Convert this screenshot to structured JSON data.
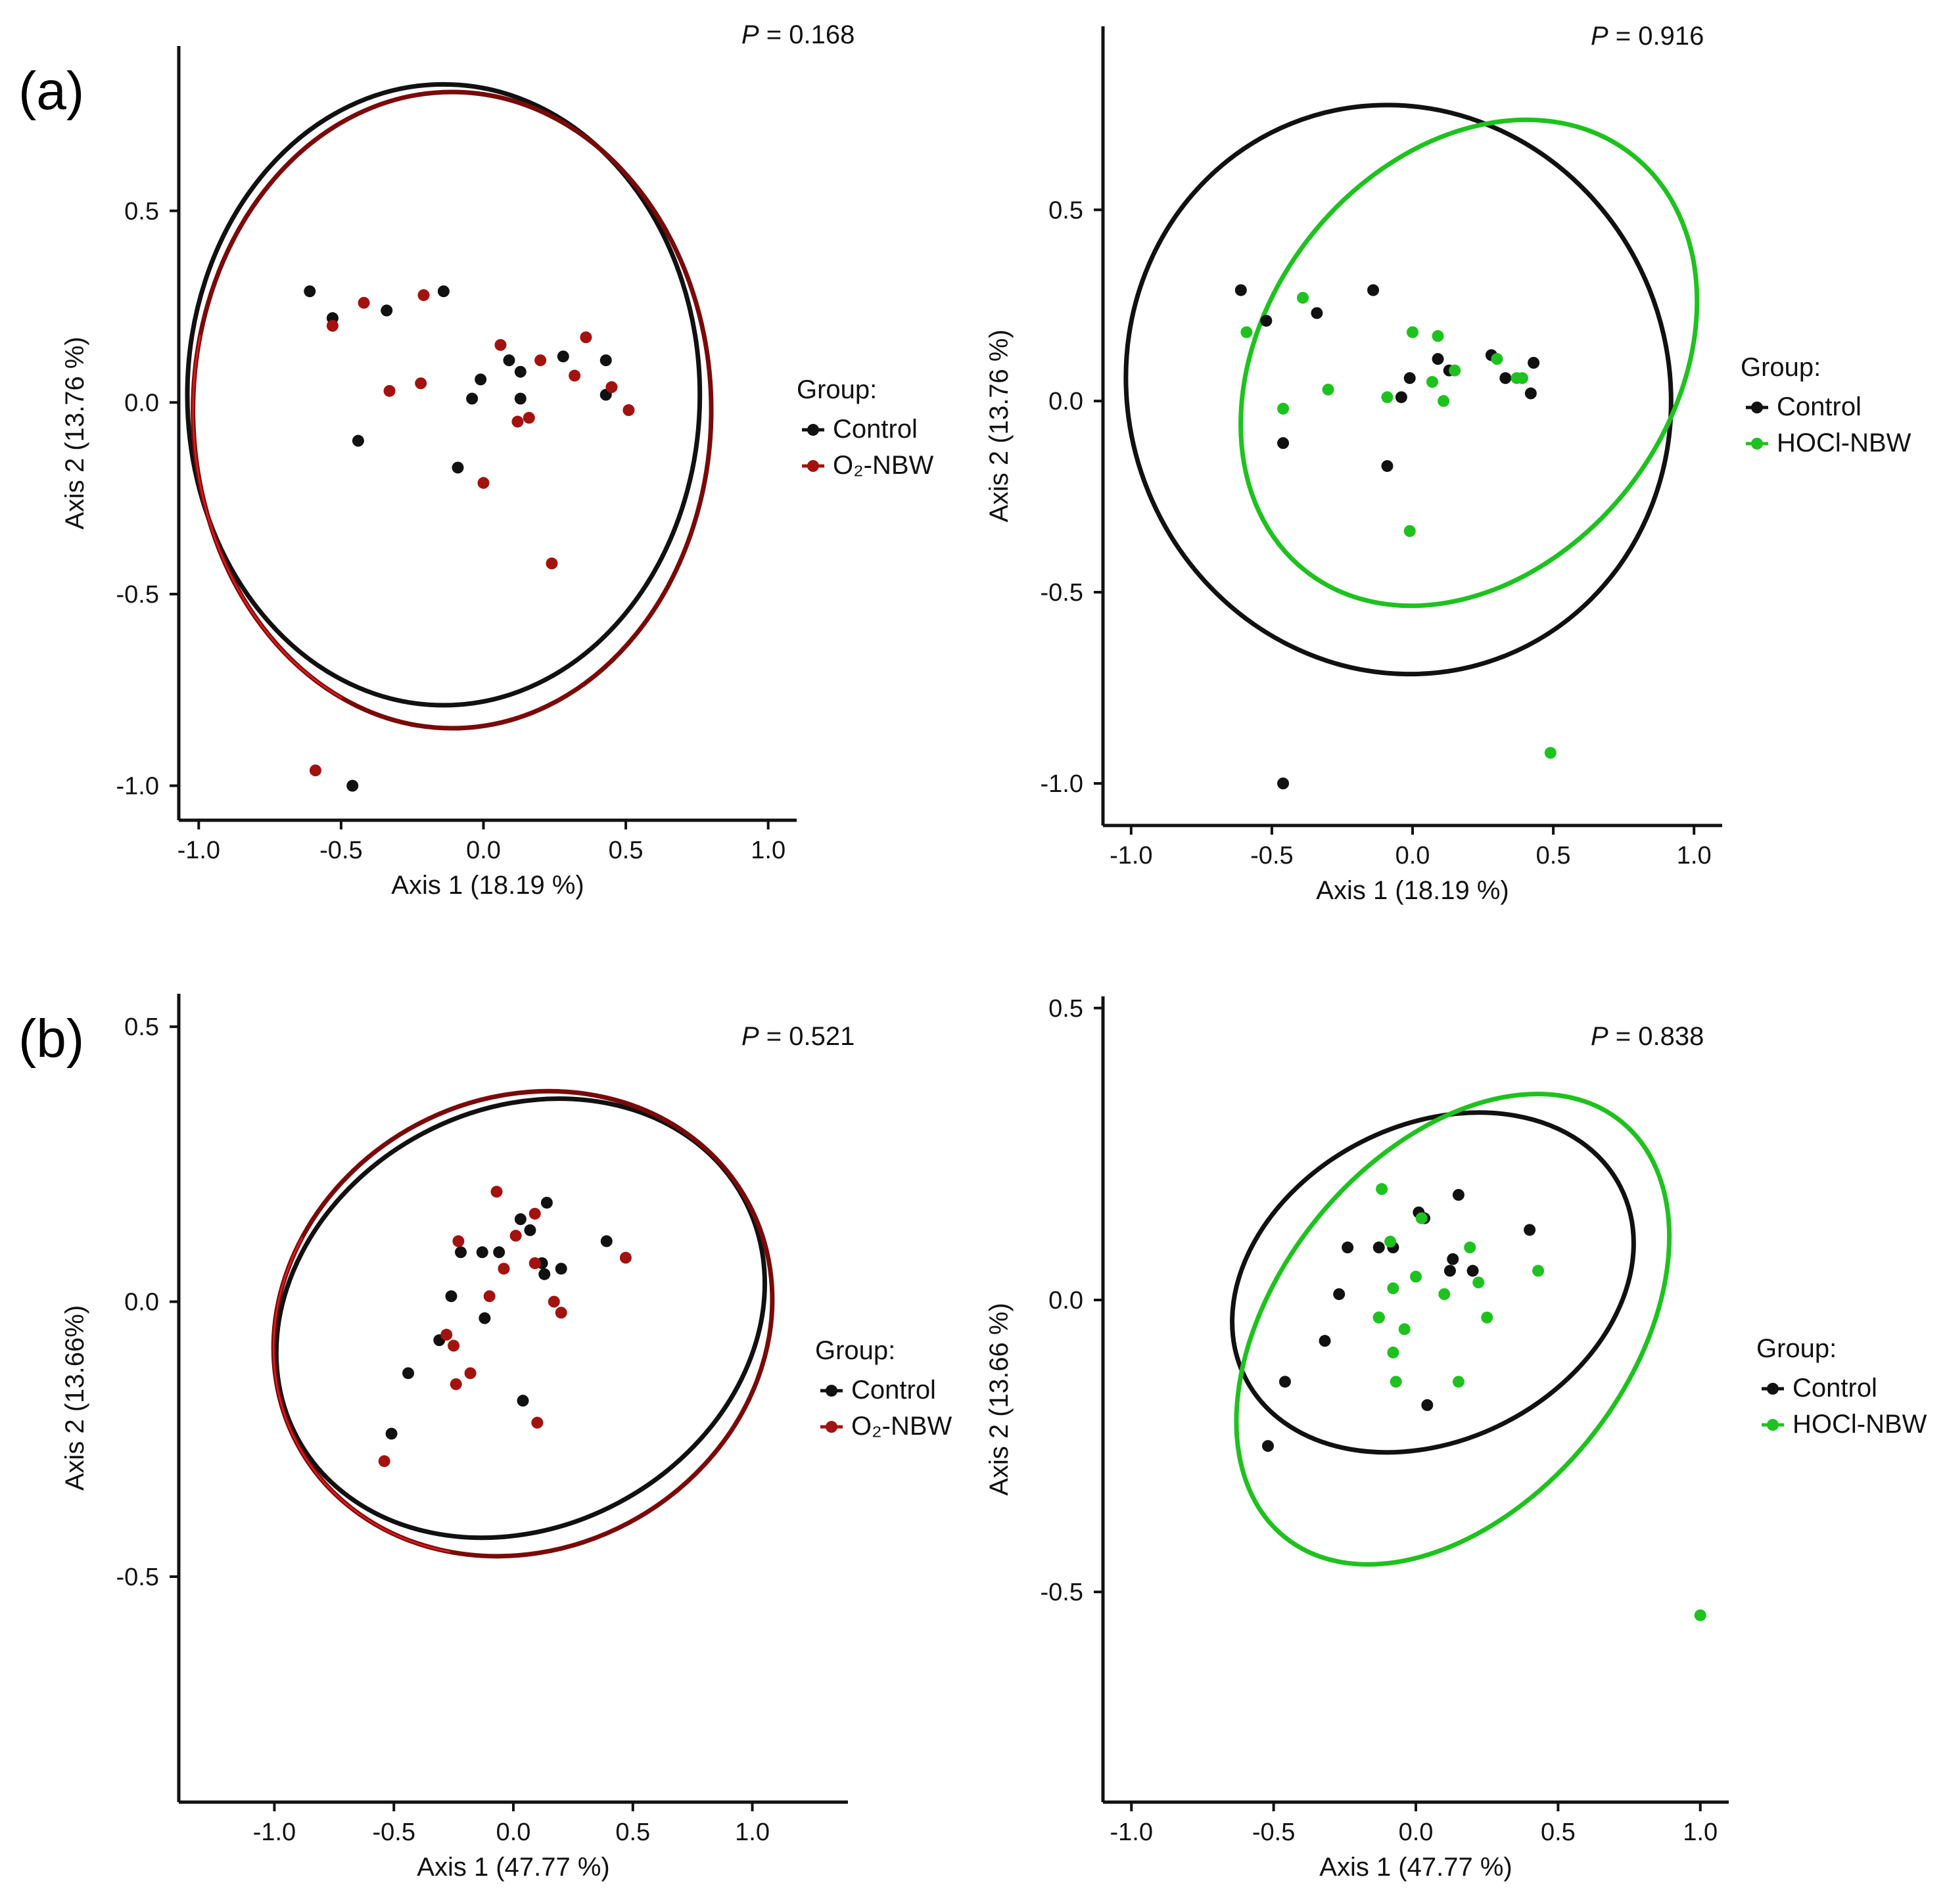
{
  "figure": {
    "panel_labels": [
      "(a)",
      "(b)"
    ],
    "legend_title": "Group:",
    "colors": {
      "control": "#111111",
      "o2_ellipse": "#7a0a0a",
      "o2_ellipse_edge": "#e01b1b",
      "o2_point": "#a3120f",
      "hocl": "#1ec21e",
      "axis": "#111111"
    }
  },
  "chart_data": [
    {
      "id": "a-left",
      "type": "scatter",
      "p_label": "P",
      "p_value": "= 0.168",
      "xlabel": "Axis 1 (18.19 %)",
      "ylabel": "Axis 2 (13.76 %)",
      "xlim": [
        -1.07,
        1.1
      ],
      "ylim": [
        -1.09,
        0.93
      ],
      "xticks": [
        -1.0,
        -0.5,
        0.0,
        0.5,
        1.0
      ],
      "xtick_labels": [
        "-1.0",
        "-0.5",
        "0.0",
        "0.5",
        "1.0"
      ],
      "yticks": [
        -1.0,
        -0.5,
        0.0,
        0.5
      ],
      "ytick_labels": [
        "-1.0",
        "-0.5",
        "0.0",
        "0.5"
      ],
      "series": [
        {
          "name": "Control",
          "color": "#111111",
          "ellipse": {
            "cx": -0.14,
            "cy": 0.02,
            "rx": 0.9,
            "ry": 0.81,
            "angle": 0
          },
          "points": [
            [
              -0.61,
              0.29
            ],
            [
              -0.53,
              0.22
            ],
            [
              -0.34,
              0.24
            ],
            [
              -0.14,
              0.29
            ],
            [
              -0.04,
              0.01
            ],
            [
              -0.01,
              0.06
            ],
            [
              0.09,
              0.11
            ],
            [
              0.13,
              0.08
            ],
            [
              0.28,
              0.12
            ],
            [
              0.43,
              0.11
            ],
            [
              0.43,
              0.02
            ],
            [
              0.13,
              0.01
            ],
            [
              -0.44,
              -0.1
            ],
            [
              -0.09,
              -0.17
            ],
            [
              -0.46,
              -1.0
            ]
          ]
        },
        {
          "name": "O₂-NBW",
          "color": "#a3120f",
          "ellipse": {
            "cx": -0.11,
            "cy": -0.02,
            "rx": 0.91,
            "ry": 0.83,
            "angle": 0
          },
          "points": [
            [
              -0.53,
              0.2
            ],
            [
              -0.42,
              0.26
            ],
            [
              -0.21,
              0.28
            ],
            [
              -0.33,
              0.03
            ],
            [
              -0.22,
              0.05
            ],
            [
              0.06,
              0.15
            ],
            [
              0.2,
              0.11
            ],
            [
              0.36,
              0.17
            ],
            [
              0.32,
              0.07
            ],
            [
              0.45,
              0.04
            ],
            [
              0.51,
              -0.02
            ],
            [
              0.12,
              -0.05
            ],
            [
              0.16,
              -0.04
            ],
            [
              0.0,
              -0.21
            ],
            [
              0.24,
              -0.42
            ],
            [
              -0.59,
              -0.96
            ]
          ]
        }
      ]
    },
    {
      "id": "a-right",
      "type": "scatter",
      "p_label": "P",
      "p_value": "= 0.916",
      "xlabel": "Axis 1 (18.19 %)",
      "ylabel": "Axis 2 (13.76 %)",
      "xlim": [
        -1.1,
        1.1
      ],
      "ylim": [
        -1.11,
        0.98
      ],
      "xticks": [
        -1.0,
        -0.5,
        0.0,
        0.5,
        1.0
      ],
      "xtick_labels": [
        "-1.0",
        "-0.5",
        "0.0",
        "0.5",
        "1.0"
      ],
      "yticks": [
        -1.0,
        -0.5,
        0.0,
        0.5
      ],
      "ytick_labels": [
        "-1.0",
        "-0.5",
        "0.0",
        "0.5"
      ],
      "series": [
        {
          "name": "Control",
          "color": "#111111",
          "ellipse": {
            "cx": -0.05,
            "cy": 0.03,
            "rx": 0.96,
            "ry": 0.75,
            "angle": -22
          },
          "points": [
            [
              -0.61,
              0.29
            ],
            [
              -0.52,
              0.21
            ],
            [
              -0.34,
              0.23
            ],
            [
              -0.14,
              0.29
            ],
            [
              -0.04,
              0.01
            ],
            [
              -0.01,
              0.06
            ],
            [
              0.09,
              0.11
            ],
            [
              0.13,
              0.08
            ],
            [
              0.28,
              0.12
            ],
            [
              0.43,
              0.1
            ],
            [
              0.42,
              0.02
            ],
            [
              0.33,
              0.06
            ],
            [
              -0.46,
              -0.11
            ],
            [
              -0.09,
              -0.17
            ],
            [
              -0.46,
              -1.0
            ]
          ]
        },
        {
          "name": "HOCl-NBW",
          "color": "#1ec21e",
          "ellipse": {
            "cx": 0.2,
            "cy": 0.1,
            "rx": 0.94,
            "ry": 0.53,
            "angle": -52
          },
          "points": [
            [
              -0.59,
              0.18
            ],
            [
              -0.39,
              0.27
            ],
            [
              -0.46,
              -0.02
            ],
            [
              -0.3,
              0.03
            ],
            [
              -0.09,
              0.01
            ],
            [
              0.0,
              0.18
            ],
            [
              0.09,
              0.17
            ],
            [
              0.07,
              0.05
            ],
            [
              0.15,
              0.08
            ],
            [
              0.11,
              0.0
            ],
            [
              0.3,
              0.11
            ],
            [
              0.37,
              0.06
            ],
            [
              0.39,
              0.06
            ],
            [
              -0.01,
              -0.34
            ],
            [
              0.49,
              -0.92
            ]
          ]
        }
      ]
    },
    {
      "id": "b-left",
      "type": "scatter",
      "p_label": "P",
      "p_value": "= 0.521",
      "xlabel": "Axis 1 (47.77 %)",
      "ylabel": "Axis 2 (13.66%)",
      "xlim": [
        -1.4,
        1.4
      ],
      "ylim": [
        -0.91,
        0.56
      ],
      "xticks": [
        -1.0,
        -0.5,
        0.0,
        0.5,
        1.0
      ],
      "xtick_labels": [
        "-1.0",
        "-0.5",
        "0.0",
        "0.5",
        "1.0"
      ],
      "yticks": [
        -0.5,
        0.0,
        0.5
      ],
      "ytick_labels": [
        "-0.5",
        "0.0",
        "0.5"
      ],
      "series": [
        {
          "name": "Control",
          "color": "#111111",
          "ellipse": {
            "cx": 0.03,
            "cy": -0.03,
            "rx": 1.06,
            "ry": 0.38,
            "angle": -28
          },
          "points": [
            [
              -0.26,
              0.01
            ],
            [
              -0.22,
              0.09
            ],
            [
              -0.13,
              0.09
            ],
            [
              -0.06,
              0.09
            ],
            [
              0.03,
              0.15
            ],
            [
              0.07,
              0.13
            ],
            [
              0.14,
              0.18
            ],
            [
              0.12,
              0.07
            ],
            [
              0.13,
              0.05
            ],
            [
              0.2,
              0.06
            ],
            [
              0.39,
              0.11
            ],
            [
              -0.31,
              -0.07
            ],
            [
              -0.12,
              -0.03
            ],
            [
              -0.44,
              -0.13
            ],
            [
              0.04,
              -0.18
            ],
            [
              -0.51,
              -0.24
            ]
          ]
        },
        {
          "name": "O₂-NBW",
          "color": "#a3120f",
          "ellipse": {
            "cx": 0.04,
            "cy": -0.04,
            "rx": 1.07,
            "ry": 0.41,
            "angle": -28
          },
          "points": [
            [
              -0.23,
              0.11
            ],
            [
              -0.07,
              0.2
            ],
            [
              0.01,
              0.12
            ],
            [
              0.09,
              0.16
            ],
            [
              -0.04,
              0.06
            ],
            [
              0.09,
              0.07
            ],
            [
              -0.1,
              0.01
            ],
            [
              0.17,
              0.0
            ],
            [
              0.2,
              -0.02
            ],
            [
              -0.28,
              -0.06
            ],
            [
              -0.25,
              -0.08
            ],
            [
              -0.18,
              -0.13
            ],
            [
              -0.24,
              -0.15
            ],
            [
              0.1,
              -0.22
            ],
            [
              0.47,
              0.08
            ],
            [
              -0.54,
              -0.29
            ]
          ]
        }
      ]
    },
    {
      "id": "b-right",
      "type": "scatter",
      "p_label": "P",
      "p_value": "= 0.838",
      "xlabel": "Axis 1 (47.77 %)",
      "ylabel": "Axis 2 (13.66 %)",
      "xlim": [
        -1.1,
        1.1
      ],
      "ylim": [
        -0.86,
        0.52
      ],
      "xticks": [
        -1.0,
        -0.5,
        0.0,
        0.5,
        1.0
      ],
      "xtick_labels": [
        "-1.0",
        "-0.5",
        "0.0",
        "0.5",
        "1.0"
      ],
      "yticks": [
        -0.5,
        0.0,
        0.5
      ],
      "ytick_labels": [
        "-0.5",
        "0.0",
        "0.5"
      ],
      "series": [
        {
          "name": "Control",
          "color": "#111111",
          "ellipse": {
            "cx": 0.06,
            "cy": 0.03,
            "rx": 0.74,
            "ry": 0.27,
            "angle": -27
          },
          "points": [
            [
              -0.24,
              0.09
            ],
            [
              -0.13,
              0.09
            ],
            [
              -0.08,
              0.09
            ],
            [
              0.01,
              0.15
            ],
            [
              0.03,
              0.14
            ],
            [
              0.15,
              0.18
            ],
            [
              0.13,
              0.07
            ],
            [
              0.12,
              0.05
            ],
            [
              0.2,
              0.05
            ],
            [
              0.4,
              0.12
            ],
            [
              -0.27,
              0.01
            ],
            [
              -0.32,
              -0.07
            ],
            [
              -0.13,
              -0.03
            ],
            [
              -0.46,
              -0.14
            ],
            [
              0.04,
              -0.18
            ],
            [
              -0.52,
              -0.25
            ]
          ]
        },
        {
          "name": "HOCl-NBW",
          "color": "#1ec21e",
          "ellipse": {
            "cx": 0.13,
            "cy": -0.05,
            "rx": 0.94,
            "ry": 0.3,
            "angle": -51
          },
          "points": [
            [
              -0.12,
              0.19
            ],
            [
              -0.09,
              0.1
            ],
            [
              0.02,
              0.14
            ],
            [
              0.19,
              0.09
            ],
            [
              -0.08,
              0.02
            ],
            [
              0.0,
              0.04
            ],
            [
              0.1,
              0.01
            ],
            [
              0.22,
              0.03
            ],
            [
              0.43,
              0.05
            ],
            [
              -0.13,
              -0.03
            ],
            [
              -0.04,
              -0.05
            ],
            [
              0.25,
              -0.03
            ],
            [
              -0.08,
              -0.09
            ],
            [
              -0.07,
              -0.14
            ],
            [
              0.15,
              -0.14
            ],
            [
              1.0,
              -0.54
            ]
          ]
        }
      ]
    }
  ]
}
